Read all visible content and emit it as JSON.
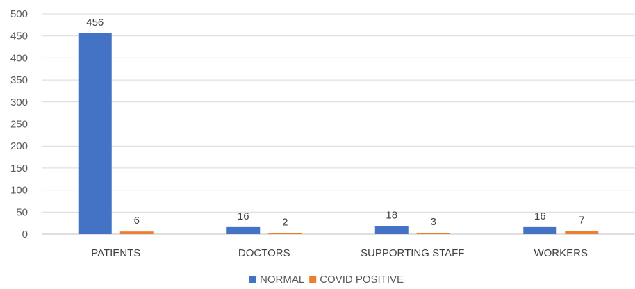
{
  "chart_data": {
    "type": "bar",
    "categories": [
      "PATIENTS",
      "DOCTORS",
      "SUPPORTING STAFF",
      "WORKERS"
    ],
    "series": [
      {
        "name": "NORMAL",
        "values": [
          456,
          16,
          18,
          16
        ],
        "color": "#4472C4"
      },
      {
        "name": "COVID POSITIVE",
        "values": [
          6,
          2,
          3,
          7
        ],
        "color": "#ED7D31"
      }
    ],
    "ylim": [
      0,
      500
    ],
    "yticks": [
      0,
      50,
      100,
      150,
      200,
      250,
      300,
      350,
      400,
      450,
      500
    ],
    "grid": true,
    "legend_position": "bottom",
    "data_labels": true
  }
}
